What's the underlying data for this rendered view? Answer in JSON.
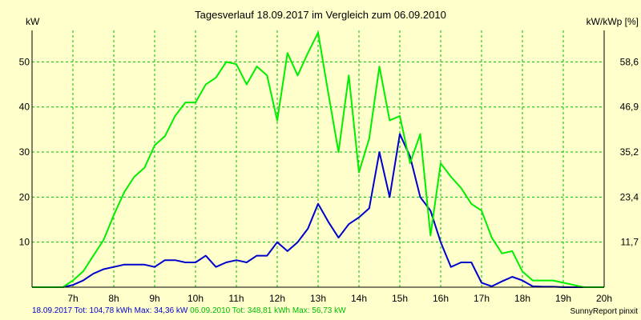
{
  "chart_data": {
    "type": "line",
    "title": "Tagesverlauf 18.09.2017 im Vergleich zum 06.09.2010",
    "ylabel_left": "kW",
    "ylabel_right": "kW/kWp [%]",
    "x_ticks": [
      "7h",
      "8h",
      "9h",
      "10h",
      "11h",
      "12h",
      "13h",
      "14h",
      "15h",
      "16h",
      "17h",
      "18h",
      "19h",
      "20h"
    ],
    "xlim": [
      6,
      20
    ],
    "ylim": [
      0,
      57
    ],
    "y_ticks_left": [
      "10",
      "20",
      "30",
      "40",
      "50"
    ],
    "y_ticks_right": [
      "11,7",
      "23,4",
      "35,2",
      "46,9",
      "58,6"
    ],
    "grid": true,
    "series": [
      {
        "name": "18.09.2017",
        "color": "#0000cc",
        "x": [
          6,
          6.75,
          7,
          7.25,
          7.5,
          7.75,
          8,
          8.25,
          8.5,
          8.75,
          9,
          9.25,
          9.5,
          9.75,
          10,
          10.25,
          10.5,
          10.75,
          11,
          11.25,
          11.5,
          11.75,
          12,
          12.25,
          12.5,
          12.75,
          13,
          13.25,
          13.5,
          13.75,
          14,
          14.25,
          14.5,
          14.75,
          15,
          15.25,
          15.5,
          15.75,
          16,
          16.25,
          16.5,
          16.75,
          17,
          17.25,
          17.5,
          17.75,
          18,
          18.25,
          18.5,
          18.75,
          19,
          19.25,
          19.5,
          19.75,
          20
        ],
        "values": [
          0,
          0,
          0.5,
          1.5,
          3,
          4,
          4.5,
          5,
          5,
          5,
          4.5,
          6,
          6,
          5.5,
          5.5,
          7,
          4.5,
          5.5,
          6,
          5.5,
          7,
          7,
          10,
          8,
          10,
          13,
          18.5,
          14.5,
          11,
          14,
          15.5,
          17.5,
          30,
          20,
          34,
          29,
          20,
          17,
          10,
          4.5,
          5.5,
          5.5,
          1,
          0.2,
          1.3,
          2.3,
          1.5,
          0.2,
          0.1,
          0.1,
          0,
          0,
          0,
          0,
          0
        ]
      },
      {
        "name": "06.09.2010",
        "color": "#00ee00",
        "x": [
          6,
          6.75,
          7,
          7.25,
          7.5,
          7.75,
          8,
          8.25,
          8.5,
          8.75,
          9,
          9.25,
          9.5,
          9.75,
          10,
          10.25,
          10.5,
          10.75,
          11,
          11.25,
          11.5,
          11.75,
          12,
          12.25,
          12.5,
          12.75,
          13,
          13.25,
          13.5,
          13.75,
          14,
          14.25,
          14.5,
          14.75,
          15,
          15.25,
          15.5,
          15.75,
          16,
          16.25,
          16.5,
          16.75,
          17,
          17.25,
          17.5,
          17.75,
          18,
          18.25,
          18.5,
          18.75,
          19,
          19.25,
          19.5,
          19.75,
          20
        ],
        "values": [
          0,
          0,
          1.5,
          3.5,
          7,
          10.5,
          16,
          21,
          24.5,
          26.5,
          31.5,
          33.5,
          38,
          41,
          41,
          45,
          46.5,
          50,
          49.5,
          45,
          49,
          47,
          37,
          52,
          47,
          52,
          56.5,
          43,
          30,
          47,
          25.5,
          33,
          49,
          37,
          38,
          27.5,
          34,
          11.5,
          27.5,
          24.5,
          22,
          18.5,
          17,
          11,
          7.5,
          8,
          3.5,
          1.5,
          1.5,
          1.5,
          1,
          0.5,
          0,
          0,
          0
        ]
      }
    ]
  },
  "footer": {
    "series1_text": "18.09.2017 Tot: 104,78 kWh Max: 34,36 kW",
    "series2_text": "06.09.2010 Tot: 348,81 kWh Max: 56,73 kW",
    "credit": "SunnyReport pinxit"
  },
  "colors": {
    "background": "#ffffcc",
    "grid": "#00bb00",
    "axis": "#000000"
  }
}
